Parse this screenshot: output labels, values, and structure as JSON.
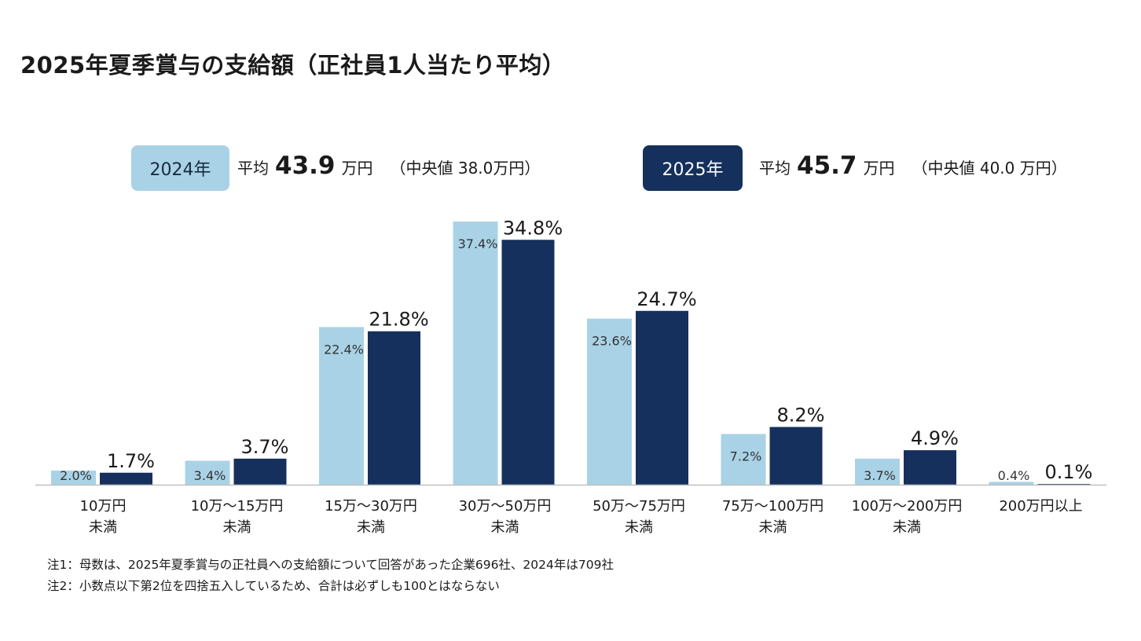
{
  "title": "2025年夏季賞与の支給額（正社員1人当たり平均）",
  "legend": {
    "y2024": {
      "badge": "2024年",
      "avg_label": "平均",
      "avg_value": "43.9",
      "avg_unit": "万円",
      "median": "（中央値 38.0万円）",
      "color": "#a9d2e6"
    },
    "y2025": {
      "badge": "2025年",
      "avg_label": "平均",
      "avg_value": "45.7",
      "avg_unit": "万円",
      "median": "（中央値 40.0 万円）",
      "color": "#15305c"
    }
  },
  "chart_data": {
    "type": "bar",
    "categories": [
      [
        "10万円",
        "未満"
      ],
      [
        "10万～15万円",
        "未満"
      ],
      [
        "15万～30万円",
        "未満"
      ],
      [
        "30万～50万円",
        "未満"
      ],
      [
        "50万～75万円",
        "未満"
      ],
      [
        "75万～100万円",
        "未満"
      ],
      [
        "100万～200万円",
        "未満"
      ],
      [
        "200万円以上"
      ]
    ],
    "series": [
      {
        "name": "2024年",
        "values": [
          2.0,
          3.4,
          22.4,
          37.4,
          23.6,
          7.2,
          3.7,
          0.4
        ],
        "labels": [
          "2.0%",
          "3.4%",
          "22.4%",
          "37.4%",
          "23.6%",
          "7.2%",
          "3.7%",
          "0.4%"
        ],
        "color": "#a9d2e6"
      },
      {
        "name": "2025年",
        "values": [
          1.7,
          3.7,
          21.8,
          34.8,
          24.7,
          8.2,
          4.9,
          0.1
        ],
        "labels": [
          "1.7%",
          "3.7%",
          "21.8%",
          "34.8%",
          "24.7%",
          "8.2%",
          "4.9%",
          "0.1%"
        ],
        "color": "#15305c"
      }
    ],
    "ylim": [
      0,
      37.4
    ],
    "grid": false
  },
  "notes": [
    "注1：母数は、2025年夏季賞与の正社員への支給額について回答があった企業696社、2024年は709社",
    "注2：小数点以下第2位を四捨五入しているため、合計は必ずしも100とはならない"
  ]
}
